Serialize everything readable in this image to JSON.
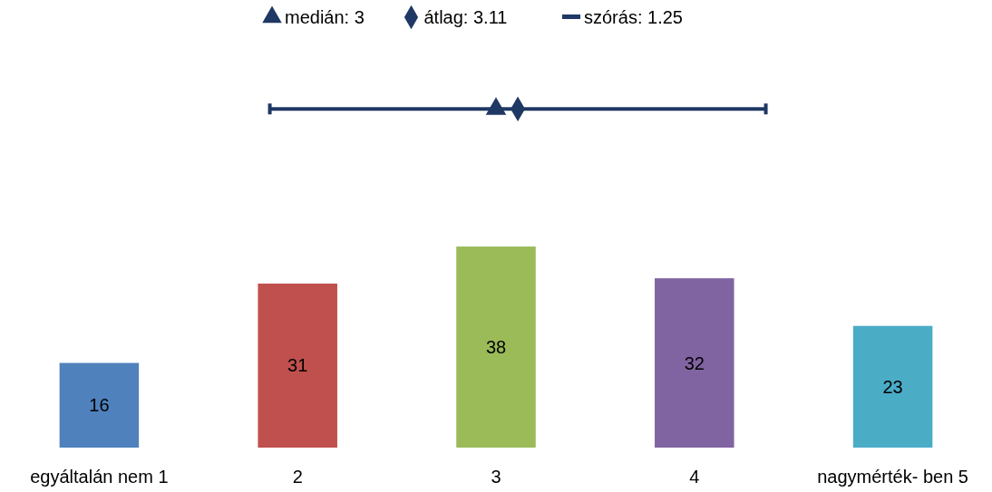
{
  "chart_data": {
    "type": "bar",
    "xlim": [
      0.5,
      5.5
    ],
    "xticks": [
      {
        "value": 1,
        "label": "egyáltalán nem 1"
      },
      {
        "value": 2,
        "label": "2"
      },
      {
        "value": 3,
        "label": "3"
      },
      {
        "value": 4,
        "label": "4"
      },
      {
        "value": 5,
        "label": "nagymérték- ben 5"
      }
    ],
    "tick_labels": "x",
    "legend": "top",
    "series": [
      {
        "x": [
          1,
          2,
          3,
          4,
          5
        ],
        "values": [
          16,
          31,
          38,
          32,
          23
        ],
        "colors": [
          "#4f81bd",
          "#c0504d",
          "#9bbb59",
          "#8064a2",
          "#4bacc6"
        ],
        "value_labels": [
          "16",
          "31",
          "38",
          "32",
          "23"
        ]
      },
      {
        "type": "scatter",
        "name": "medián: 3",
        "color": "#1f3864",
        "marker": "triangle",
        "x": [
          3
        ],
        "values": [
          64
        ]
      },
      {
        "type": "scatter",
        "name": "átlag: 3.11",
        "color": "#1f3864",
        "marker": "diamond",
        "x": [
          3.11
        ],
        "values": [
          64
        ]
      },
      {
        "type": "line",
        "name": "szórás: 1.25",
        "color": "#1f3864",
        "marker": "none",
        "x": [
          1.86,
          4.36
        ],
        "values": [
          64,
          64
        ]
      }
    ]
  }
}
